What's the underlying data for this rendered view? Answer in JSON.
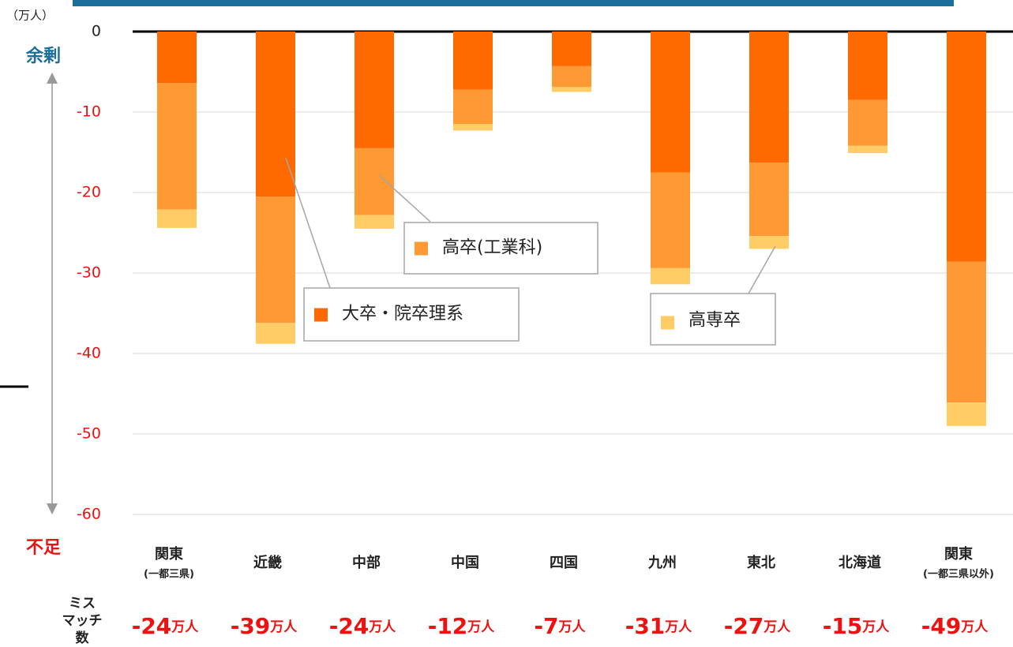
{
  "chart_data": {
    "type": "bar",
    "stacked": true,
    "unit_label": "（万人）",
    "surplus_label": "余剰",
    "shortage_label": "不足",
    "mismatch_label": "ミスマッチ数",
    "categories": [
      "関東",
      "近畿",
      "中部",
      "中国",
      "四国",
      "九州",
      "東北",
      "北海道",
      "関東"
    ],
    "category_notes": [
      "(一都三県)",
      null,
      null,
      null,
      null,
      null,
      null,
      null,
      "(一都三県以外)"
    ],
    "series": [
      {
        "name": "大卒・院卒理系",
        "color": "#ff6a00",
        "values": [
          -6.4,
          -20.5,
          -14.5,
          -7.2,
          -4.3,
          -17.5,
          -16.3,
          -8.5,
          -28.6
        ]
      },
      {
        "name": "高卒(工業科)",
        "color": "#ff9933",
        "values": [
          -15.7,
          -15.7,
          -8.3,
          -4.3,
          -2.6,
          -11.9,
          -9.1,
          -5.7,
          -17.5
        ]
      },
      {
        "name": "高専卒",
        "color": "#ffcc66",
        "values": [
          -2.3,
          -2.6,
          -1.7,
          -0.8,
          -0.6,
          -2.0,
          -1.6,
          -0.9,
          -2.9
        ]
      }
    ],
    "mismatch": {
      "values": [
        -24,
        -39,
        -24,
        -12,
        -7,
        -31,
        -27,
        -15,
        -49
      ],
      "unit": "万人"
    },
    "ylim": [
      -60,
      0
    ],
    "yticks": [
      0,
      -10,
      -20,
      -30,
      -40,
      -50,
      -60
    ],
    "grid": true
  }
}
